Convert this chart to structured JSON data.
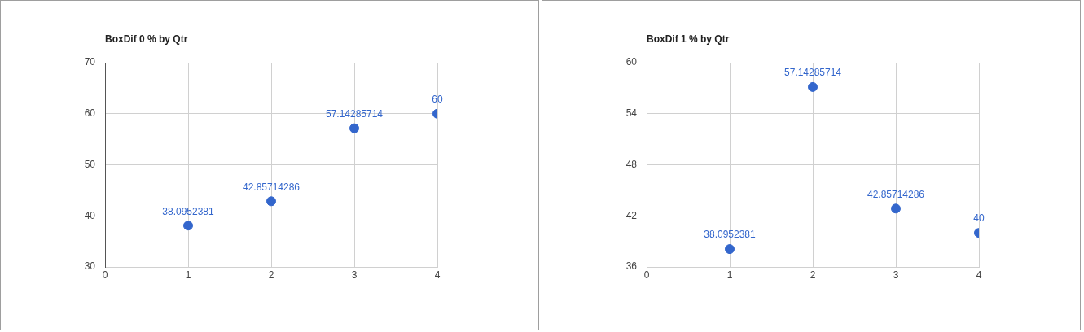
{
  "chart_data": [
    {
      "type": "scatter",
      "title": "BoxDif 0 % by Qtr",
      "x": [
        1,
        2,
        3,
        4
      ],
      "series": [
        {
          "color": "#3366cc",
          "values": [
            38.0952381,
            42.85714286,
            57.14285714,
            60
          ]
        }
      ],
      "xlim": [
        0,
        4
      ],
      "xticks": [
        0,
        1,
        2,
        3,
        4
      ],
      "ylim": [
        30,
        70
      ],
      "yticks": [
        30,
        40,
        50,
        60,
        70
      ],
      "grid": true,
      "legend": false,
      "marker": "circle",
      "data_labels": true
    },
    {
      "type": "scatter",
      "title": "BoxDif 1 % by Qtr",
      "x": [
        1,
        2,
        3,
        4
      ],
      "series": [
        {
          "color": "#3366cc",
          "values": [
            38.0952381,
            57.14285714,
            42.85714286,
            40
          ]
        }
      ],
      "xlim": [
        0,
        4
      ],
      "xticks": [
        0,
        1,
        2,
        3,
        4
      ],
      "ylim": [
        36,
        60
      ],
      "yticks": [
        36,
        42,
        48,
        54,
        60
      ],
      "grid": true,
      "legend": false,
      "marker": "circle",
      "data_labels": true
    }
  ]
}
